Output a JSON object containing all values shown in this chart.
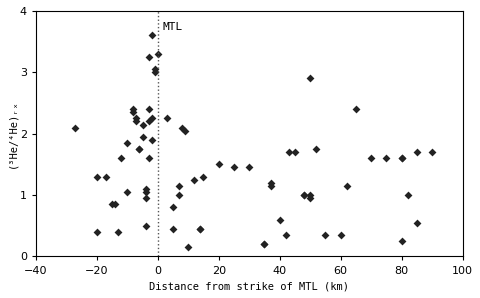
{
  "x_data": [
    -27,
    -20,
    -20,
    -17,
    -15,
    -14,
    -13,
    -12,
    -10,
    -10,
    -8,
    -8,
    -7,
    -7,
    -6,
    -6,
    -5,
    -5,
    -4,
    -4,
    -4,
    -4,
    -3,
    -3,
    -3,
    -3,
    -2,
    -2,
    -2,
    -1,
    -1,
    0,
    3,
    5,
    5,
    7,
    7,
    8,
    9,
    10,
    12,
    14,
    14,
    15,
    20,
    25,
    30,
    35,
    35,
    37,
    37,
    40,
    42,
    43,
    45,
    48,
    48,
    50,
    50,
    50,
    52,
    55,
    60,
    62,
    65,
    70,
    75,
    80,
    80,
    80,
    82,
    85,
    85,
    90
  ],
  "y_data": [
    2.1,
    0.4,
    1.3,
    1.3,
    0.85,
    0.85,
    0.4,
    1.6,
    1.05,
    1.85,
    2.4,
    2.35,
    2.25,
    2.2,
    1.75,
    1.75,
    1.95,
    2.15,
    1.1,
    1.05,
    0.95,
    0.5,
    3.25,
    2.4,
    2.2,
    1.6,
    3.6,
    2.25,
    1.9,
    3.05,
    3.0,
    3.3,
    2.25,
    0.8,
    0.45,
    1.15,
    1.0,
    2.1,
    2.05,
    0.15,
    1.25,
    0.45,
    0.45,
    1.3,
    1.5,
    1.45,
    1.45,
    0.2,
    0.2,
    1.2,
    1.15,
    0.6,
    0.35,
    1.7,
    1.7,
    1.0,
    1.0,
    2.9,
    1.0,
    0.95,
    1.75,
    0.35,
    0.35,
    1.15,
    2.4,
    1.6,
    1.6,
    0.25,
    1.6,
    1.6,
    1.0,
    0.55,
    1.7,
    1.7
  ],
  "xlabel": "Distance from strike of MTL (km)",
  "ylabel": "(³He/⁴He)ᵣₓ",
  "xlim": [
    -40,
    100
  ],
  "ylim": [
    0,
    4
  ],
  "xticks": [
    -40,
    -20,
    0,
    20,
    40,
    60,
    80,
    100
  ],
  "yticks": [
    0,
    1,
    2,
    3,
    4
  ],
  "mtl_x": 0,
  "mtl_label": "MTL",
  "marker": "D",
  "marker_size": 4,
  "marker_color": "#222222",
  "dotted_line_color": "#555555",
  "bg_color": "#ffffff"
}
